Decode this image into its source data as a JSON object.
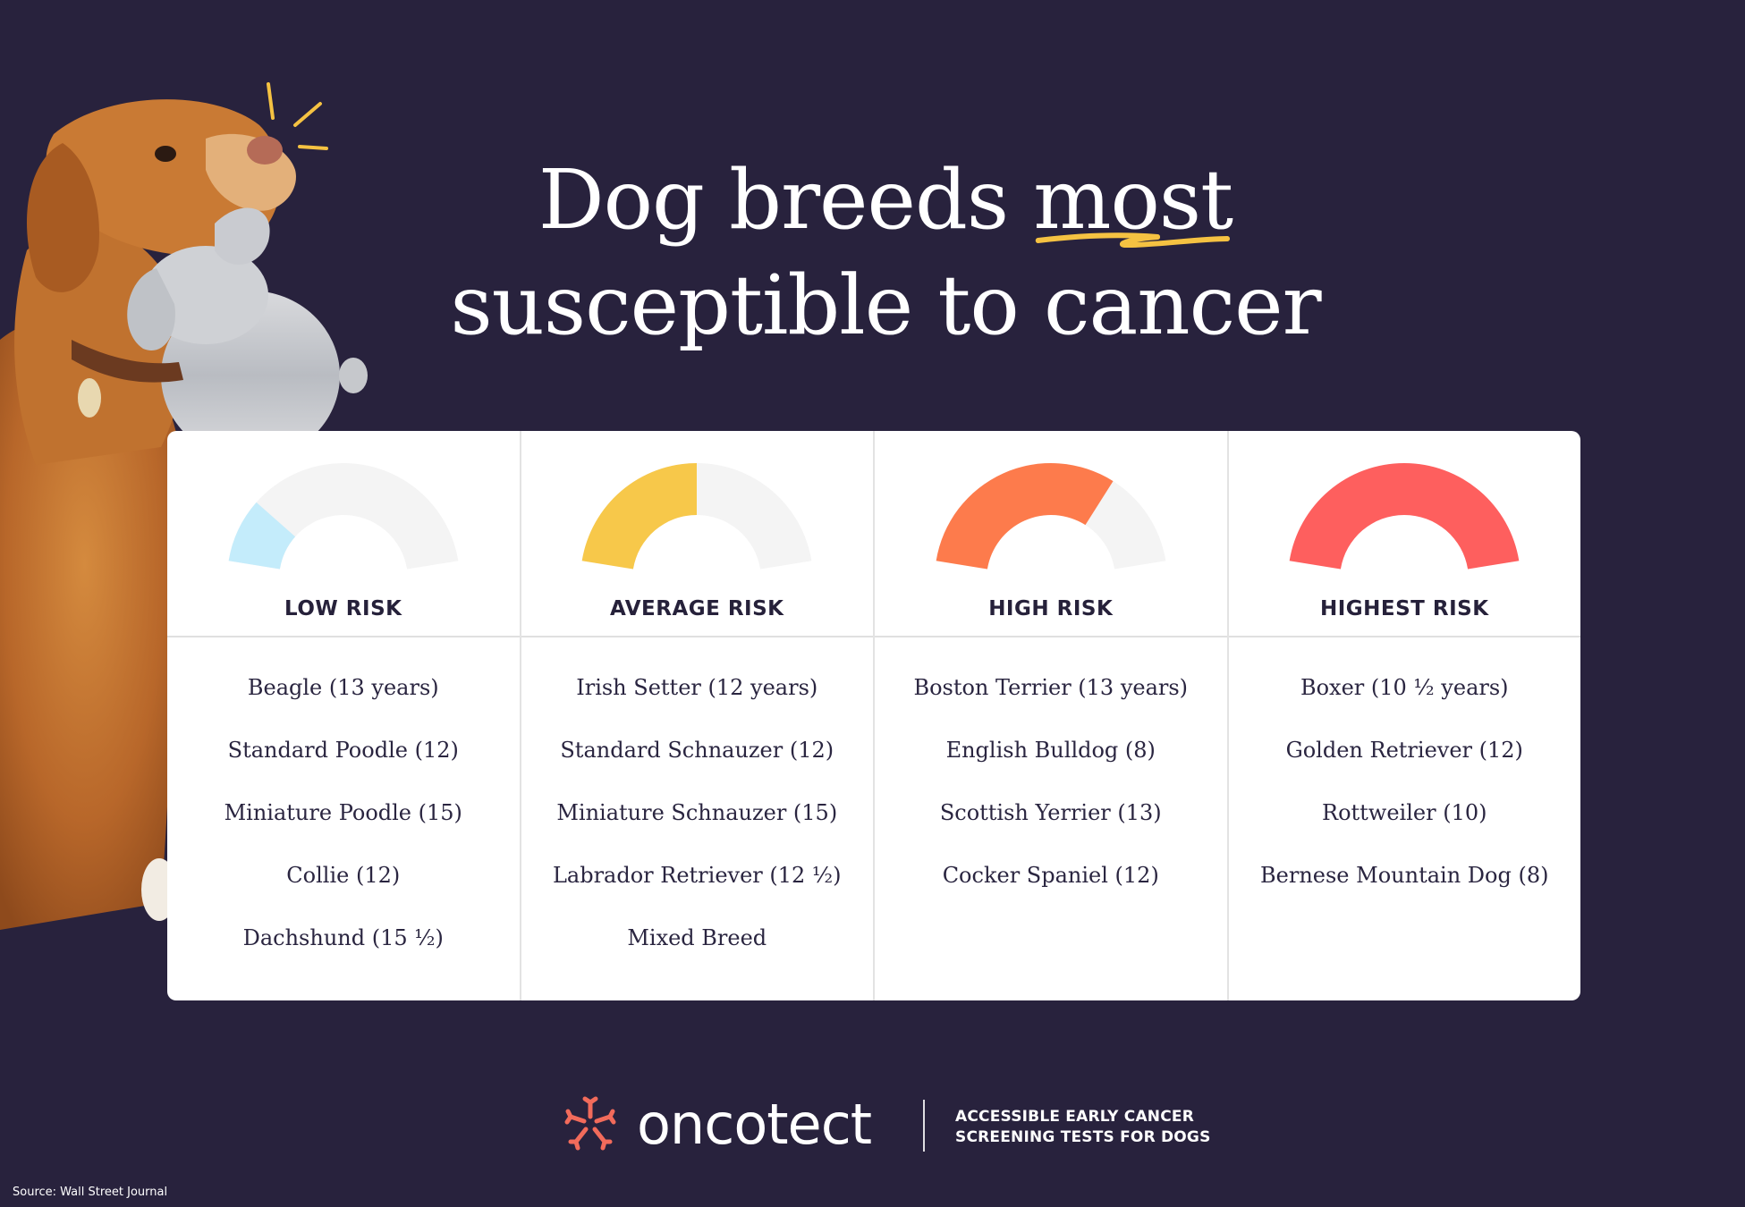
{
  "title": {
    "line1_before": "Dog breeds ",
    "line1_highlight": "most",
    "line2": "susceptible to cancer"
  },
  "colors": {
    "background": "#28223d",
    "highlight_underline": "#f5c242",
    "gauge_track": "#f4f4f4",
    "brand_accent": "#f26b5b"
  },
  "categories": [
    {
      "label": "LOW RISK",
      "level": 0.2,
      "color": "#c4ecfb",
      "breeds": [
        "Beagle (13 years)",
        "Standard Poodle (12)",
        "Miniature Poodle (15)",
        "Collie (12)",
        "Dachshund (15 ½)"
      ]
    },
    {
      "label": "AVERAGE RISK",
      "level": 0.5,
      "color": "#f7c84a",
      "breeds": [
        "Irish Setter (12 years)",
        "Standard Schnauzer (12)",
        "Miniature Schnauzer (15)",
        "Labrador Retriever (12 ½)",
        "Mixed Breed"
      ]
    },
    {
      "label": "HIGH RISK",
      "level": 0.7,
      "color": "#fd7b4c",
      "breeds": [
        "Boston Terrier (13 years)",
        "English Bulldog (8)",
        "Scottish Yerrier (13)",
        "Cocker Spaniel (12)"
      ]
    },
    {
      "label": "HIGHEST RISK",
      "level": 1.0,
      "color": "#fe5f5e",
      "breeds": [
        "Boxer (10 ½ years)",
        "Golden Retriever (12)",
        "Rottweiler (10)",
        "Bernese Mountain Dog (8)"
      ]
    }
  ],
  "brand": {
    "name": "oncotect",
    "tagline_line1": "ACCESSIBLE EARLY CANCER",
    "tagline_line2": "SCREENING TESTS FOR DOGS"
  },
  "source": "Source: Wall Street Journal"
}
